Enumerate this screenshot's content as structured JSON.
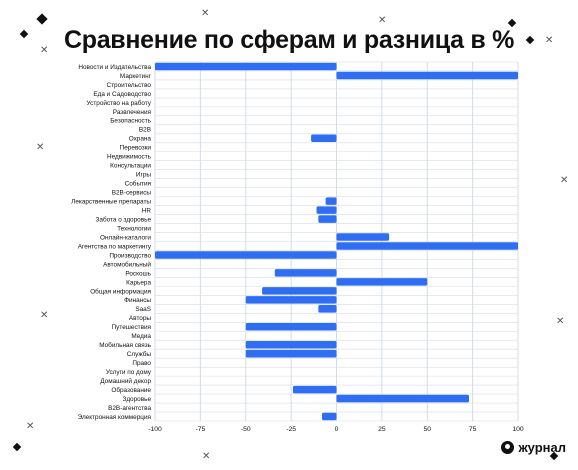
{
  "title": "Сравнение по сферам и разница в %",
  "brand": "журнал",
  "colors": {
    "bar": "#2f6ef2",
    "grid": "#d4dbe6",
    "text": "#111111"
  },
  "chart_data": {
    "type": "bar",
    "orientation": "horizontal",
    "title": "Сравнение по сферам и разница в %",
    "xlim": [
      -100,
      100
    ],
    "xticks": [
      -100,
      -75,
      -50,
      -25,
      0,
      25,
      50,
      75,
      100
    ],
    "grid": true,
    "categories": [
      "Новости и Издательства",
      "Маркетинг",
      "Строительство",
      "Еда и Садоводство",
      "Устройство на работу",
      "Развлечения",
      "Безопасность",
      "B2B",
      "Охрана",
      "Перевозки",
      "Недвижимость",
      "Консультации",
      "Игры",
      "События",
      "B2B-сервисы",
      "Лекарственные препараты",
      "HR",
      "Забота о здоровье",
      "Технологии",
      "Онлайн-каталоги",
      "Агентства по маркетингу",
      "Производство",
      "Автомобильный",
      "Роскошь",
      "Карьера",
      "Общая информация",
      "Финансы",
      "SaaS",
      "Авторы",
      "Путешествия",
      "Медиа",
      "Мобильная связь",
      "Службы",
      "Право",
      "Услуги по дому",
      "Домашний декор",
      "Образование",
      "Здоровье",
      "B2B-агентства",
      "Электронная коммерция"
    ],
    "values": [
      -100,
      100,
      0,
      0,
      0,
      0,
      0,
      0,
      -14,
      0,
      0,
      0,
      0,
      0,
      0,
      -6,
      -11,
      -10,
      0,
      29,
      100,
      -100,
      0,
      -34,
      50,
      -41,
      -50,
      -10,
      0,
      -50,
      0,
      -50,
      -50,
      0,
      0,
      0,
      -24,
      73,
      0,
      -8
    ]
  }
}
